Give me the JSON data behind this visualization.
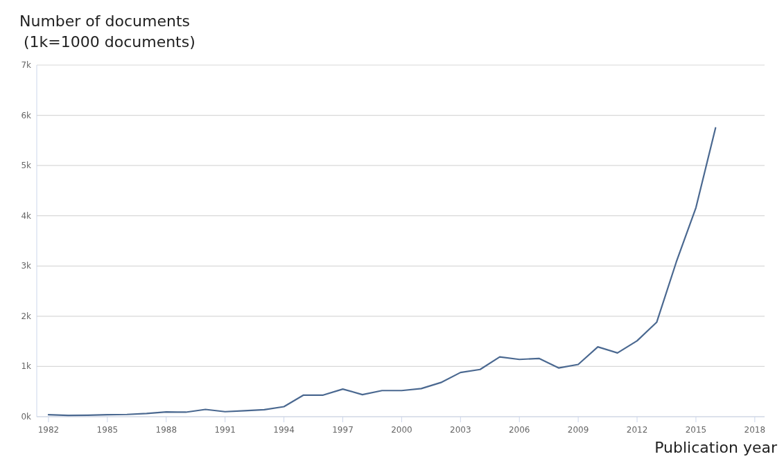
{
  "chart_data": {
    "type": "line",
    "ylabel": "Number of documents\n(1k=1000 documents)",
    "xlabel": "Publication year",
    "x": [
      1982,
      1983,
      1984,
      1985,
      1986,
      1987,
      1988,
      1989,
      1990,
      1991,
      1992,
      1993,
      1994,
      1995,
      1996,
      1997,
      1998,
      1999,
      2000,
      2001,
      2002,
      2003,
      2004,
      2005,
      2006,
      2007,
      2008,
      2009,
      2010,
      2011,
      2012,
      2013,
      2014,
      2015,
      2016
    ],
    "series": [
      {
        "color": "#4a6890",
        "values": [
          40,
          25,
          30,
          40,
          45,
          65,
          95,
          90,
          145,
          100,
          120,
          140,
          200,
          430,
          430,
          550,
          440,
          520,
          520,
          560,
          680,
          880,
          940,
          1190,
          1140,
          1160,
          970,
          1040,
          1390,
          1270,
          1510,
          1880,
          3080,
          4160,
          5750
        ]
      }
    ],
    "xlim": [
      1981.4,
      2018.5
    ],
    "xticks": [
      1982,
      1985,
      1988,
      1991,
      1994,
      1997,
      2000,
      2003,
      2006,
      2009,
      2012,
      2015,
      2018
    ],
    "ylim": [
      0,
      7000
    ],
    "yticks": [
      {
        "value": 0,
        "label": "0k"
      },
      {
        "value": 1000,
        "label": "1k"
      },
      {
        "value": 2000,
        "label": "2k"
      },
      {
        "value": 3000,
        "label": "3k"
      },
      {
        "value": 4000,
        "label": "4k"
      },
      {
        "value": 5000,
        "label": "5k"
      },
      {
        "value": 6000,
        "label": "6k"
      },
      {
        "value": 7000,
        "label": "7k"
      }
    ],
    "grid": "y",
    "marker": "none",
    "line_style": "solid"
  }
}
